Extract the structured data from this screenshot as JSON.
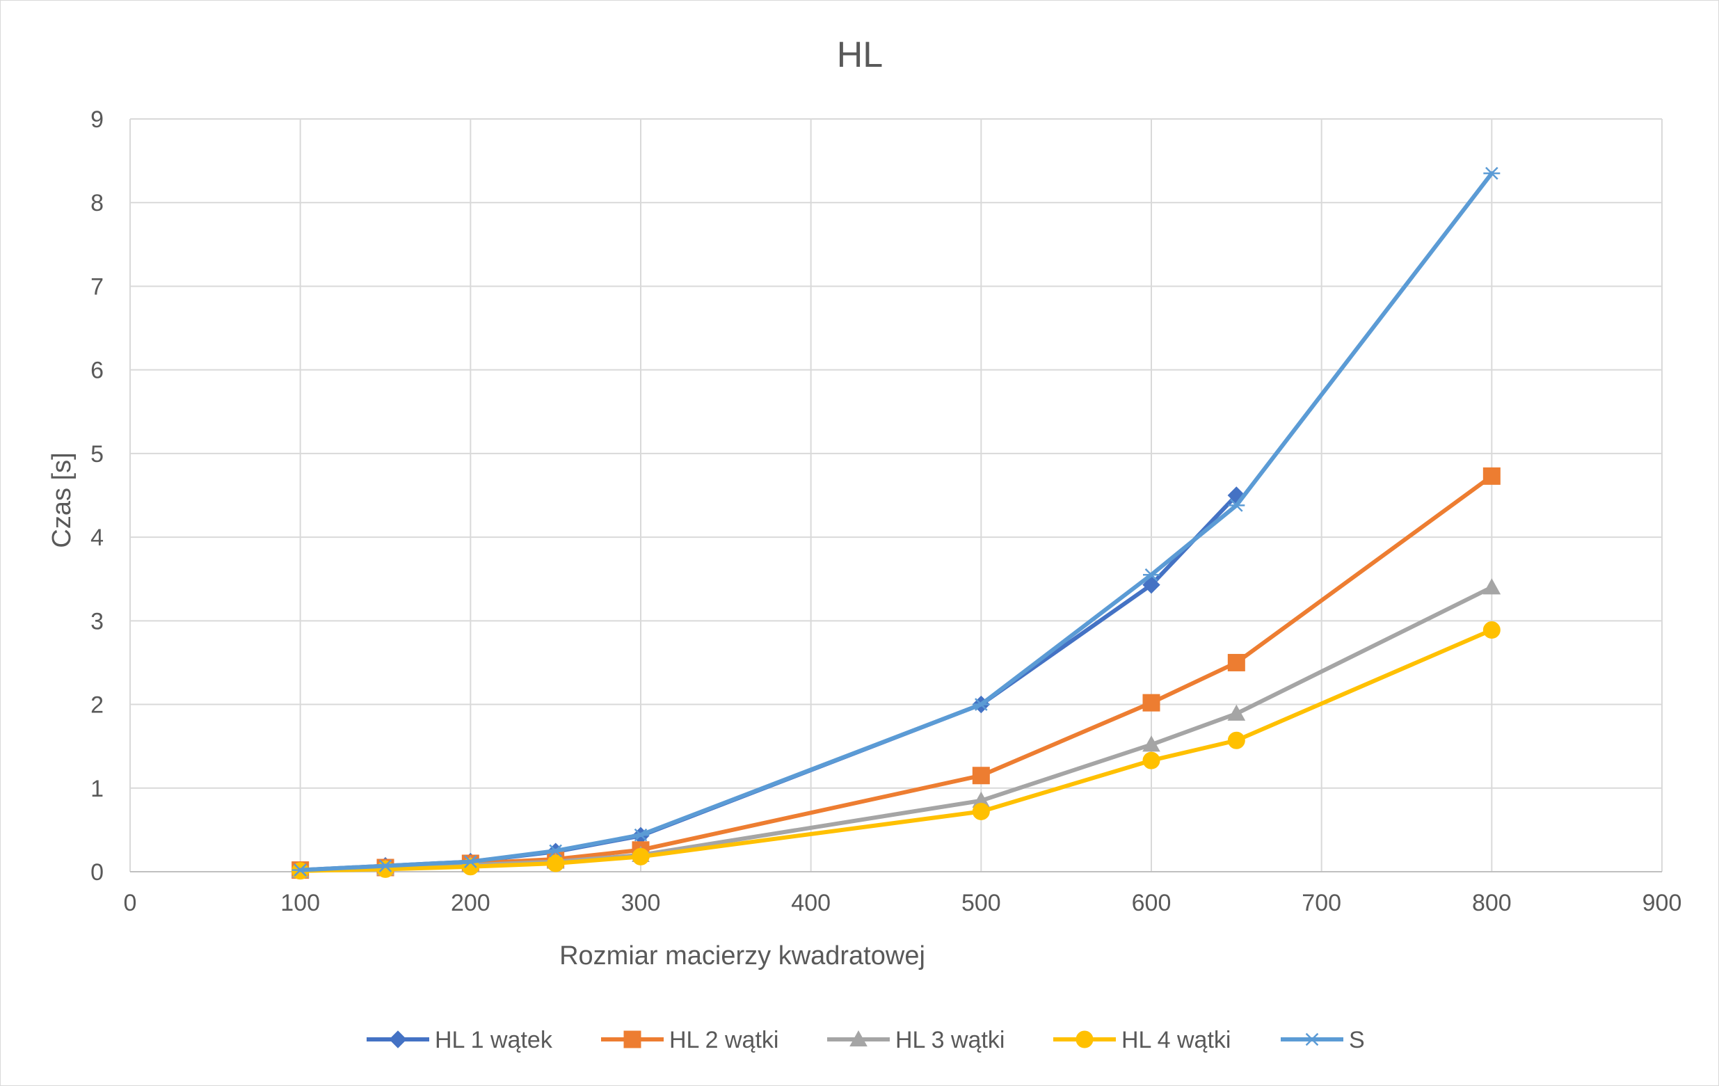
{
  "chart_data": {
    "type": "line",
    "title": "HL",
    "xlabel": "Rozmiar macierzy kwadratowej",
    "ylabel": "Czas [s]",
    "xlim": [
      0,
      900
    ],
    "ylim": [
      0,
      9
    ],
    "x_ticks": [
      0,
      100,
      200,
      300,
      400,
      500,
      600,
      700,
      800,
      900
    ],
    "y_ticks": [
      0,
      1,
      2,
      3,
      4,
      5,
      6,
      7,
      8,
      9
    ],
    "grid": true,
    "legend_position": "bottom",
    "series": [
      {
        "name": "HL 1 wątek",
        "color": "#4472C4",
        "marker": "diamond",
        "x": [
          100,
          150,
          200,
          250,
          300,
          500,
          600,
          650
        ],
        "y": [
          0.02,
          0.07,
          0.12,
          0.24,
          0.43,
          2.0,
          3.43,
          4.5
        ]
      },
      {
        "name": "HL 2 wątki",
        "color": "#ED7D31",
        "marker": "square",
        "x": [
          100,
          150,
          200,
          250,
          300,
          500,
          600,
          650,
          800
        ],
        "y": [
          0.02,
          0.05,
          0.1,
          0.15,
          0.26,
          1.15,
          2.02,
          2.5,
          4.73
        ]
      },
      {
        "name": "HL 3 wątki",
        "color": "#A5A5A5",
        "marker": "triangle",
        "x": [
          100,
          150,
          200,
          250,
          300,
          500,
          600,
          650,
          800
        ],
        "y": [
          0.01,
          0.04,
          0.08,
          0.12,
          0.2,
          0.85,
          1.52,
          1.89,
          3.4
        ]
      },
      {
        "name": "HL 4 wątki",
        "color": "#FFC000",
        "marker": "circle",
        "x": [
          100,
          150,
          200,
          250,
          300,
          500,
          600,
          650,
          800
        ],
        "y": [
          0.01,
          0.03,
          0.06,
          0.1,
          0.18,
          0.72,
          1.33,
          1.57,
          2.89
        ]
      },
      {
        "name": "S",
        "color": "#5B9BD5",
        "marker": "star",
        "x": [
          100,
          150,
          200,
          250,
          300,
          500,
          600,
          650,
          800
        ],
        "y": [
          0.02,
          0.07,
          0.12,
          0.25,
          0.44,
          2.0,
          3.55,
          4.38,
          8.35
        ]
      }
    ]
  }
}
